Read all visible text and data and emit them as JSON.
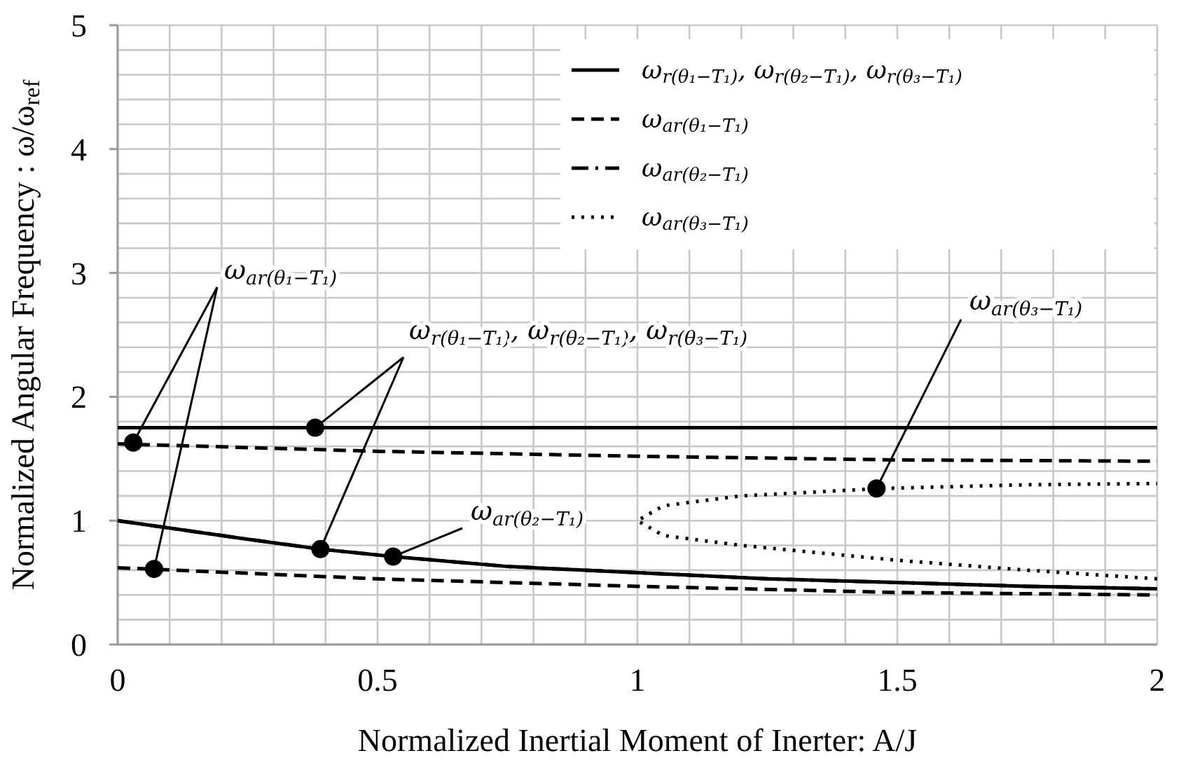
{
  "chart_data": {
    "type": "line",
    "xlabel": "Normalized Inertial Moment of Inerter:  A/J",
    "ylabel": "Normalized Angular Frequency : ω/ω$_{ref}$",
    "xlim": [
      0,
      2
    ],
    "ylim": [
      0,
      5
    ],
    "xticks": [
      0,
      {
        "value": 0.1,
        "label": null
      },
      {
        "value": 0.2,
        "label": null
      },
      {
        "value": 0.3,
        "label": null
      },
      {
        "value": 0.4,
        "label": null
      },
      0.5,
      {
        "value": 0.6,
        "label": null
      },
      {
        "value": 0.7,
        "label": null
      },
      {
        "value": 0.8,
        "label": null
      },
      {
        "value": 0.9,
        "label": null
      },
      1,
      {
        "value": 1.1,
        "label": null
      },
      {
        "value": 1.2,
        "label": null
      },
      {
        "value": 1.3,
        "label": null
      },
      {
        "value": 1.4,
        "label": null
      },
      1.5,
      {
        "value": 1.6,
        "label": null
      },
      {
        "value": 1.7,
        "label": null
      },
      {
        "value": 1.8,
        "label": null
      },
      {
        "value": 1.9,
        "label": null
      },
      2
    ],
    "yticks": [
      0,
      {
        "value": 0.2,
        "label": null
      },
      {
        "value": 0.4,
        "label": null
      },
      {
        "value": 0.6,
        "label": null
      },
      {
        "value": 0.8,
        "label": null
      },
      1,
      {
        "value": 1.2,
        "label": null
      },
      {
        "value": 1.4,
        "label": null
      },
      {
        "value": 1.6,
        "label": null
      },
      {
        "value": 1.8,
        "label": null
      },
      2,
      {
        "value": 2.2,
        "label": null
      },
      {
        "value": 2.4,
        "label": null
      },
      {
        "value": 2.6,
        "label": null
      },
      {
        "value": 2.8,
        "label": null
      },
      3,
      {
        "value": 3.2,
        "label": null
      },
      {
        "value": 3.4,
        "label": null
      },
      {
        "value": 3.6,
        "label": null
      },
      {
        "value": 3.8,
        "label": null
      },
      4,
      {
        "value": 4.2,
        "label": null
      },
      {
        "value": 4.4,
        "label": null
      },
      {
        "value": 4.6,
        "label": null
      },
      {
        "value": 4.8,
        "label": null
      },
      5
    ],
    "grid": true,
    "legend": "top right",
    "series": [
      {
        "name": "ω$_{r(θ₁−T₁)}$, ω$_{r(θ₂−T₁)}$, ω$_{r(θ₃−T₁)}$",
        "color": "#000000",
        "line_style": "solid",
        "x": [
          0,
          2
        ],
        "values": [
          1.75,
          1.75
        ]
      },
      {
        "color": "#000000",
        "line_style": "solid",
        "x": [
          0,
          0.25,
          0.39,
          0.53,
          0.75,
          1,
          1.25,
          1.5,
          1.75,
          2
        ],
        "values": [
          1.0,
          0.85,
          0.77,
          0.71,
          0.63,
          0.58,
          0.53,
          0.5,
          0.47,
          0.45
        ]
      },
      {
        "name": "ω$_{ar(θ₁−T₁)}$",
        "color": "#000000",
        "line_style": "dashed",
        "x": [
          0,
          0.5,
          1,
          1.5,
          2
        ],
        "values": [
          1.62,
          1.56,
          1.52,
          1.49,
          1.48
        ]
      },
      {
        "color": "#000000",
        "line_style": "dashed",
        "x": [
          0,
          0.5,
          1,
          1.5,
          2
        ],
        "values": [
          0.62,
          0.53,
          0.47,
          0.42,
          0.4
        ]
      },
      {
        "name": "ω$_{ar(θ₂−T₁)}$",
        "color": "#000000",
        "line_style": "dashdot",
        "x": [
          0,
          0.25,
          0.39,
          0.53,
          0.75,
          1,
          1.25,
          1.5,
          1.75,
          2
        ],
        "values": [
          1.0,
          0.85,
          0.77,
          0.71,
          0.63,
          0.58,
          0.53,
          0.5,
          0.47,
          0.45
        ]
      },
      {
        "name": "ω$_{ar(θ₃−T₁)}$",
        "color": "#000000",
        "line_style": "dotted",
        "x": [
          2,
          1.75,
          1.5,
          1.2,
          1.05,
          1,
          1.05,
          1.2,
          1.47,
          1.75,
          2
        ],
        "values": [
          0.53,
          0.6,
          0.68,
          0.8,
          0.88,
          1.0,
          1.12,
          1.2,
          1.26,
          1.29,
          1.3
        ]
      },
      {
        "type": "scatter",
        "color": "#000000",
        "marker": "circle",
        "x": [
          0.03,
          0.07,
          0.38,
          0.39,
          0.53,
          1.46
        ],
        "values": [
          1.63,
          0.61,
          1.75,
          0.77,
          0.71,
          1.26
        ]
      }
    ],
    "annotations": [
      {
        "text": "ω$_{ar(θ₁−T₁)}$",
        "x": 0.03,
        "y": 1.63
      },
      {
        "text": "ω$_{r(θ₁−T₁)}$, ω$_{r(θ₂−T₁)}$, ω$_{r(θ₃−T₁)}$",
        "x": 0.38,
        "y": 1.75
      },
      {
        "text": "ω$_{ar(θ₃−T₁)}$",
        "x": 1.46,
        "y": 1.26
      },
      {
        "text": "ω$_{ar(θ₂−T₁)}$",
        "x": 0.53,
        "y": 0.71
      }
    ]
  }
}
